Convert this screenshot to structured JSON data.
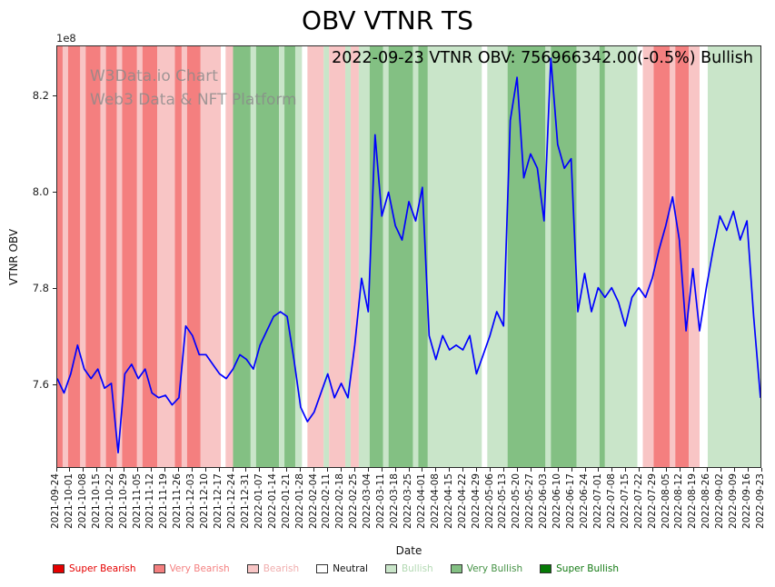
{
  "figure": {
    "title": "OBV VTNR TS",
    "annotation": "2022-09-23 VTNR OBV: 756966342.00(-0.5%) Bullish",
    "watermark_line1": "W3Data.io Chart",
    "watermark_line2": "Web3 Data & NFT Platform"
  },
  "chart_data": {
    "type": "line",
    "title": "OBV VTNR TS",
    "xlabel": "Date",
    "ylabel": "VTNR OBV",
    "y_offset_text": "1e8",
    "ylim": [
      7.425,
      8.305
    ],
    "yticks": [
      7.6,
      7.8,
      8.0,
      8.2
    ],
    "ytick_labels": [
      "7.6",
      "7.8",
      "8.0",
      "8.2"
    ],
    "grid": false,
    "legend_position": "bottom",
    "x_tick_labels": [
      "2021-09-24",
      "2021-10-01",
      "2021-10-08",
      "2021-10-15",
      "2021-10-22",
      "2021-10-29",
      "2021-11-05",
      "2021-11-12",
      "2021-11-19",
      "2021-11-26",
      "2021-12-03",
      "2021-12-10",
      "2021-12-17",
      "2021-12-24",
      "2021-12-31",
      "2022-01-07",
      "2022-01-14",
      "2022-01-21",
      "2022-01-28",
      "2022-02-04",
      "2022-02-11",
      "2022-02-18",
      "2022-02-25",
      "2022-03-04",
      "2022-03-11",
      "2022-03-18",
      "2022-03-25",
      "2022-04-01",
      "2022-04-08",
      "2022-04-15",
      "2022-04-22",
      "2022-04-29",
      "2022-05-06",
      "2022-05-13",
      "2022-05-20",
      "2022-05-27",
      "2022-06-03",
      "2022-06-10",
      "2022-06-17",
      "2022-06-24",
      "2022-07-01",
      "2022-07-08",
      "2022-07-15",
      "2022-07-22",
      "2022-07-29",
      "2022-08-05",
      "2022-08-12",
      "2022-08-19",
      "2022-08-26",
      "2022-09-02",
      "2022-09-09",
      "2022-09-16",
      "2022-09-23"
    ],
    "line_color": "#0000ff",
    "series": [
      {
        "name": "VTNR OBV (1e8)",
        "points_per_week": 2,
        "values": [
          7.61,
          7.58,
          7.62,
          7.68,
          7.63,
          7.61,
          7.63,
          7.59,
          7.6,
          7.455,
          7.62,
          7.64,
          7.61,
          7.63,
          7.58,
          7.57,
          7.575,
          7.555,
          7.57,
          7.72,
          7.7,
          7.66,
          7.66,
          7.64,
          7.62,
          7.61,
          7.63,
          7.66,
          7.65,
          7.63,
          7.68,
          7.71,
          7.74,
          7.75,
          7.74,
          7.65,
          7.55,
          7.52,
          7.54,
          7.58,
          7.62,
          7.57,
          7.6,
          7.57,
          7.68,
          7.82,
          7.75,
          8.12,
          7.95,
          8.0,
          7.93,
          7.9,
          7.98,
          7.94,
          8.01,
          7.7,
          7.65,
          7.7,
          7.67,
          7.68,
          7.67,
          7.7,
          7.62,
          7.66,
          7.7,
          7.75,
          7.72,
          8.15,
          8.24,
          8.03,
          8.08,
          8.05,
          7.94,
          8.28,
          8.1,
          8.05,
          8.07,
          7.75,
          7.83,
          7.75,
          7.8,
          7.78,
          7.8,
          7.77,
          7.72,
          7.78,
          7.8,
          7.78,
          7.82,
          7.88,
          7.93,
          7.99,
          7.9,
          7.71,
          7.84,
          7.71,
          7.8,
          7.88,
          7.95,
          7.92,
          7.96,
          7.9,
          7.94,
          7.74,
          7.5697
        ]
      }
    ],
    "band_colors": {
      "super_bearish": "#e50000",
      "very_bearish": "#f47f7f",
      "bearish": "#f8c5c5",
      "neutral": "#ffffff",
      "bullish": "#c9e5c9",
      "very_bullish": "#83c083",
      "super_bullish": "#067a06"
    },
    "bands": [
      [
        0,
        0.4,
        "very_bearish"
      ],
      [
        0.4,
        0.8,
        "bearish"
      ],
      [
        0.8,
        1.7,
        "very_bearish"
      ],
      [
        1.7,
        2.1,
        "bearish"
      ],
      [
        2.1,
        3.2,
        "very_bearish"
      ],
      [
        3.2,
        3.6,
        "bearish"
      ],
      [
        3.6,
        4.4,
        "very_bearish"
      ],
      [
        4.4,
        4.8,
        "bearish"
      ],
      [
        4.8,
        5.9,
        "very_bearish"
      ],
      [
        5.9,
        6.3,
        "bearish"
      ],
      [
        6.3,
        7.4,
        "very_bearish"
      ],
      [
        7.4,
        8.7,
        "bearish"
      ],
      [
        8.7,
        9.2,
        "very_bearish"
      ],
      [
        9.2,
        9.6,
        "bearish"
      ],
      [
        9.6,
        10.6,
        "very_bearish"
      ],
      [
        10.6,
        12.1,
        "bearish"
      ],
      [
        12.1,
        12.45,
        "neutral"
      ],
      [
        12.45,
        13.0,
        "bearish"
      ],
      [
        13.0,
        14.3,
        "very_bullish"
      ],
      [
        14.3,
        14.7,
        "bullish"
      ],
      [
        14.7,
        16.4,
        "very_bullish"
      ],
      [
        16.4,
        16.8,
        "bullish"
      ],
      [
        16.8,
        17.6,
        "very_bullish"
      ],
      [
        17.6,
        18.1,
        "bullish"
      ],
      [
        18.1,
        18.5,
        "neutral"
      ],
      [
        18.5,
        19.7,
        "bearish"
      ],
      [
        19.7,
        20.1,
        "bullish"
      ],
      [
        20.1,
        21.3,
        "bearish"
      ],
      [
        21.3,
        21.7,
        "bullish"
      ],
      [
        21.7,
        22.3,
        "bearish"
      ],
      [
        22.3,
        23.1,
        "bullish"
      ],
      [
        23.1,
        24.1,
        "very_bullish"
      ],
      [
        24.1,
        24.5,
        "bullish"
      ],
      [
        24.5,
        26.3,
        "very_bullish"
      ],
      [
        26.3,
        26.7,
        "bullish"
      ],
      [
        26.7,
        27.4,
        "very_bullish"
      ],
      [
        27.4,
        31.4,
        "bullish"
      ],
      [
        31.4,
        31.8,
        "neutral"
      ],
      [
        31.8,
        33.3,
        "bullish"
      ],
      [
        33.3,
        36.1,
        "very_bullish"
      ],
      [
        36.1,
        36.5,
        "bullish"
      ],
      [
        36.5,
        38.4,
        "very_bullish"
      ],
      [
        38.4,
        40.1,
        "bullish"
      ],
      [
        40.1,
        40.5,
        "very_bullish"
      ],
      [
        40.5,
        42.9,
        "bullish"
      ],
      [
        42.9,
        43.3,
        "neutral"
      ],
      [
        43.3,
        44.1,
        "bearish"
      ],
      [
        44.1,
        45.3,
        "very_bearish"
      ],
      [
        45.3,
        45.7,
        "bearish"
      ],
      [
        45.7,
        46.7,
        "very_bearish"
      ],
      [
        46.7,
        47.5,
        "bearish"
      ],
      [
        47.5,
        48.1,
        "neutral"
      ],
      [
        48.1,
        52.0,
        "bullish"
      ]
    ],
    "legend": [
      {
        "label": "Super Bearish",
        "color": "#e50000",
        "text_color": "#e50000"
      },
      {
        "label": "Very Bearish",
        "color": "#f47f7f",
        "text_color": "#f47f7f"
      },
      {
        "label": "Bearish",
        "color": "#f8c5c5",
        "text_color": "#f0adad"
      },
      {
        "label": "Neutral",
        "color": "#ffffff",
        "text_color": "#111111"
      },
      {
        "label": "Bullish",
        "color": "#c9e5c9",
        "text_color": "#b3d9b3"
      },
      {
        "label": "Very Bullish",
        "color": "#83c083",
        "text_color": "#449144"
      },
      {
        "label": "Super Bullish",
        "color": "#067a06",
        "text_color": "#137a13"
      }
    ]
  }
}
